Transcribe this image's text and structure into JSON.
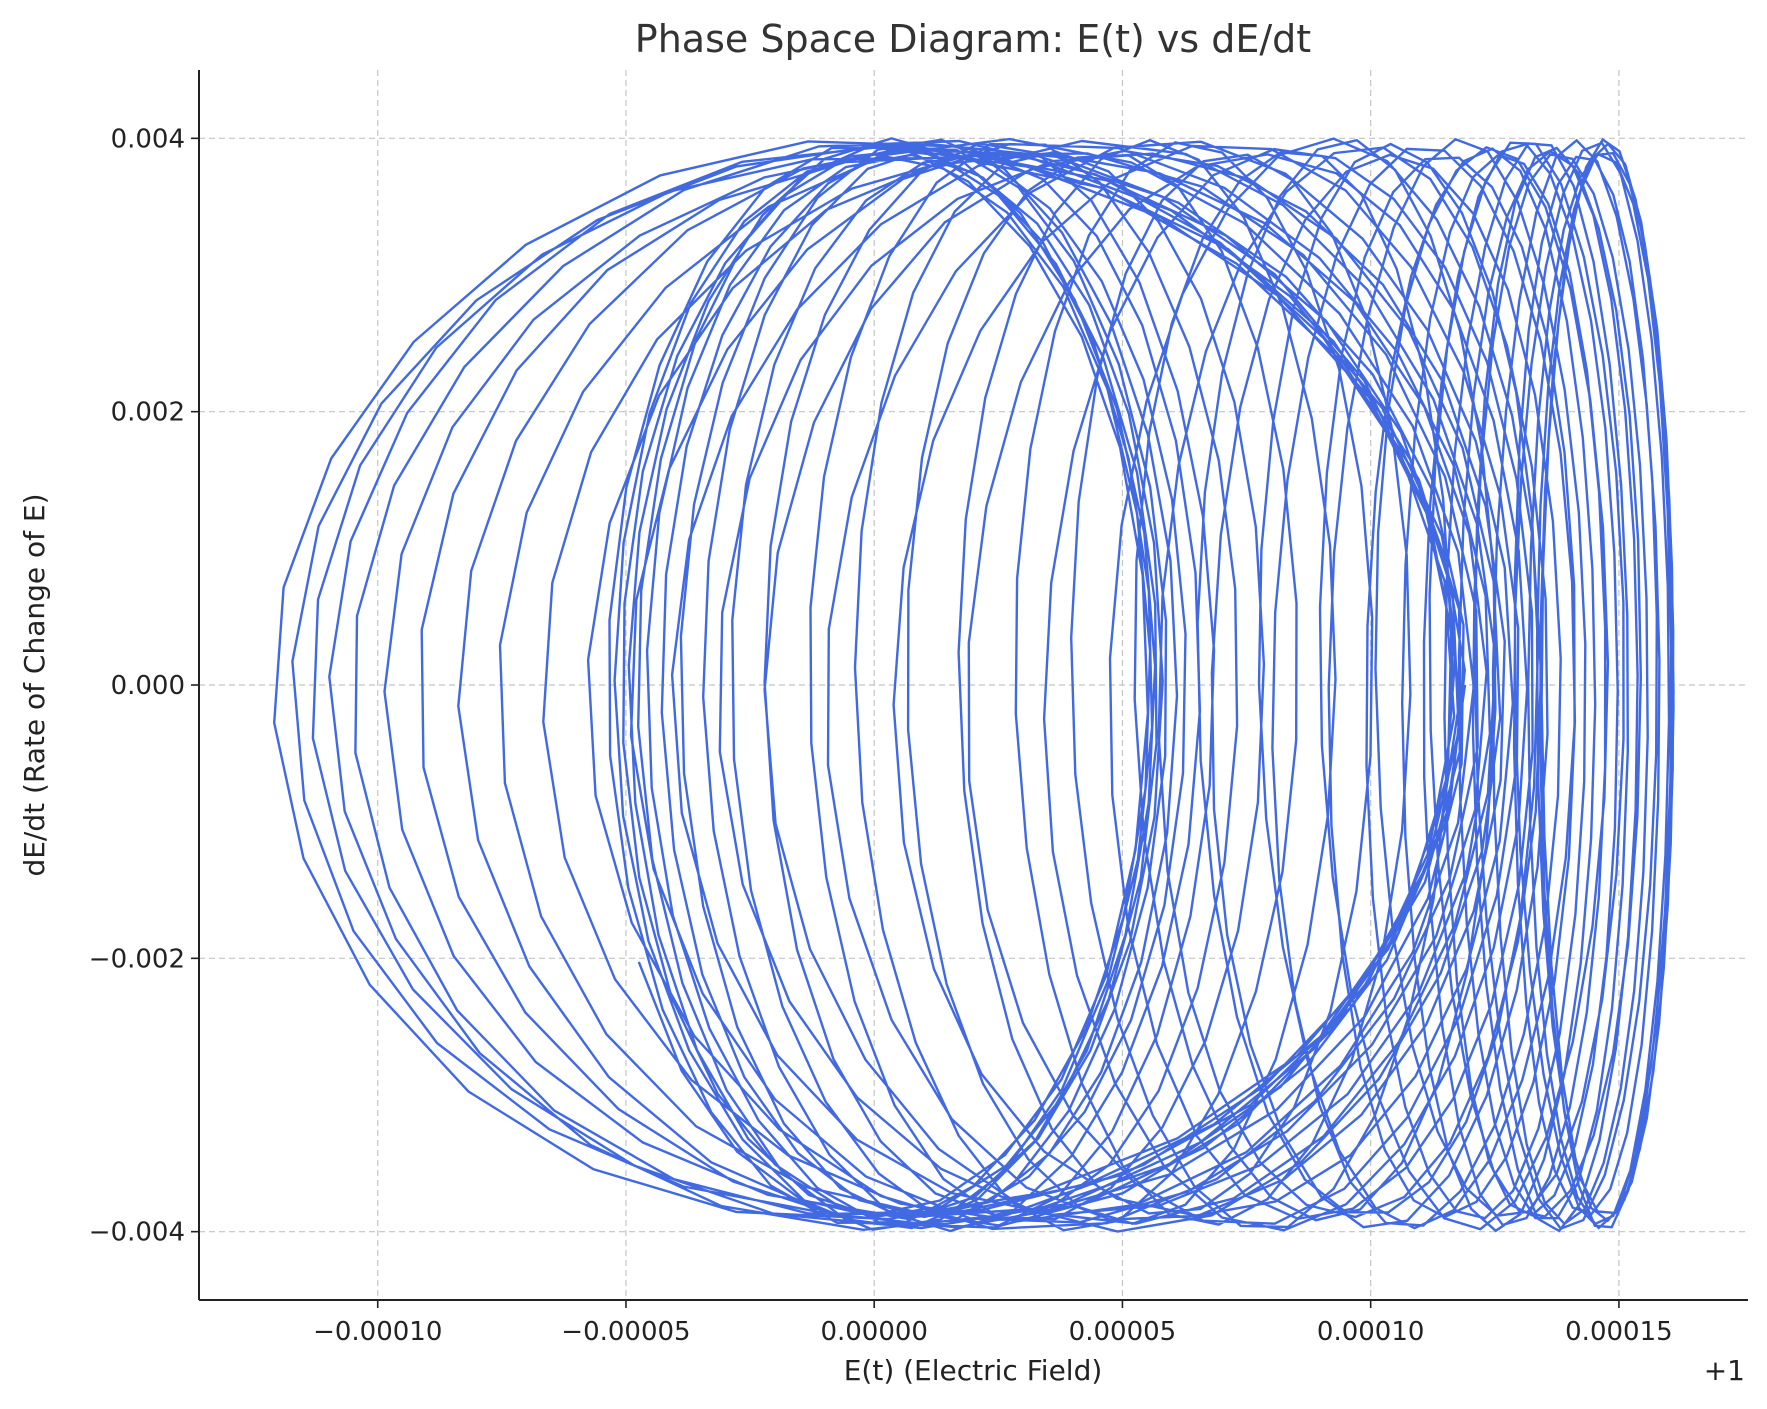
{
  "chart_data": {
    "type": "line",
    "title": "Phase Space Diagram: E(t) vs dE/dt",
    "xlabel": "E(t) (Electric Field)",
    "ylabel": "dE/dt (Rate of Change of E)",
    "x_offset_label": "+1",
    "xlim": [
      -0.000136,
      0.000176
    ],
    "ylim": [
      -0.0045,
      0.0045
    ],
    "xticks": [
      -0.0001,
      -5e-05,
      0.0,
      5e-05,
      0.0001,
      0.00015
    ],
    "xtick_labels": [
      "−0.00010",
      "−0.00005",
      "0.00000",
      "0.00005",
      "0.00010",
      "0.00015"
    ],
    "yticks": [
      0.004,
      0.002,
      0.0,
      -0.002,
      -0.004
    ],
    "ytick_labels": [
      "0.004",
      "0.002",
      "0.000",
      "−0.002",
      "−0.004"
    ],
    "grid": true,
    "line_color": "#4169e1",
    "series": [
      {
        "x_center": [
          -2e-06,
          2e-06,
          5e-06,
          1.2e-05,
          2.2e-05,
          3.3e-05,
          4.3e-05,
          5.4e-05,
          7e-05,
          8.8e-05,
          0.0001,
          0.000116,
          0.000126,
          0.000133,
          0.000138,
          0.000145,
          0.000148,
          0.000147,
          0.000135,
          0.00012,
          9.9e-05,
          7.6e-05,
          5.6e-05,
          3.7e-05,
          2.2e-05,
          1.3e-05,
          7e-06,
          4e-06,
          2e-06,
          0.0
        ],
        "x_amplitude": [
          0.000121,
          0.000117,
          0.000112,
          0.000105,
          9.8e-05,
          9e-05,
          8.2e-05,
          7.3e-05,
          6e-05,
          4.5e-05,
          3.6e-05,
          2.6e-05,
          2e-05,
          1.8e-05,
          1.7e-05,
          1.5e-05,
          1.3e-05,
          1.4e-05,
          1.9e-05,
          2.7e-05,
          3.2e-05,
          3.6e-05,
          4e-05,
          4.3e-05,
          4.7e-05,
          5e-05,
          5.2e-05,
          5.3e-05,
          5.4e-05,
          5.5e-05
        ],
        "y_amplitude": 0.004
      }
    ]
  }
}
